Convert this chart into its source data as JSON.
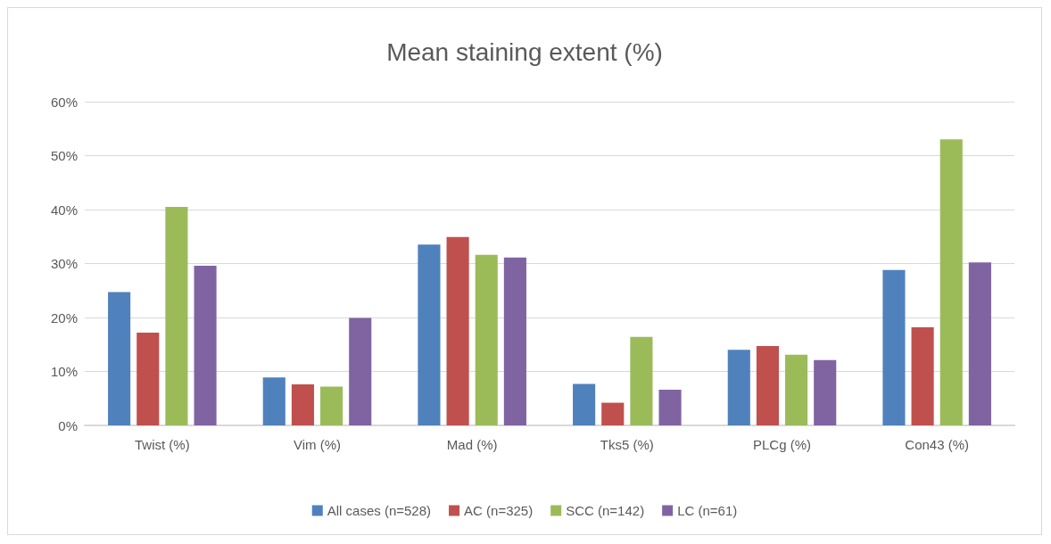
{
  "chart_data": {
    "type": "bar",
    "title": "Mean staining extent (%)",
    "categories": [
      "Twist (%)",
      "Vim (%)",
      "Mad (%)",
      "Tks5 (%)",
      "PLCg (%)",
      "Con43 (%)"
    ],
    "series": [
      {
        "name": "All cases (n=528)",
        "color": "#4f81bd",
        "values": [
          24.7,
          8.9,
          33.5,
          7.7,
          14.0,
          28.8
        ]
      },
      {
        "name": "AC (n=325)",
        "color": "#c0504d",
        "values": [
          17.2,
          7.6,
          34.9,
          4.2,
          14.7,
          18.2
        ]
      },
      {
        "name": "SCC (n=142)",
        "color": "#9bbb59",
        "values": [
          40.5,
          7.2,
          31.6,
          16.4,
          13.1,
          53.0
        ]
      },
      {
        "name": "LC (n=61)",
        "color": "#8064a2",
        "values": [
          29.6,
          19.9,
          31.1,
          6.6,
          12.1,
          30.2
        ]
      }
    ],
    "ylim": [
      0,
      60
    ],
    "yticks": [
      {
        "value": 0,
        "label": "0%"
      },
      {
        "value": 10,
        "label": "10%"
      },
      {
        "value": 20,
        "label": "20%"
      },
      {
        "value": 30,
        "label": "30%"
      },
      {
        "value": 40,
        "label": "40%"
      },
      {
        "value": 50,
        "label": "50%"
      },
      {
        "value": 60,
        "label": "60%"
      }
    ],
    "grid": "y",
    "legend": "bottom"
  }
}
